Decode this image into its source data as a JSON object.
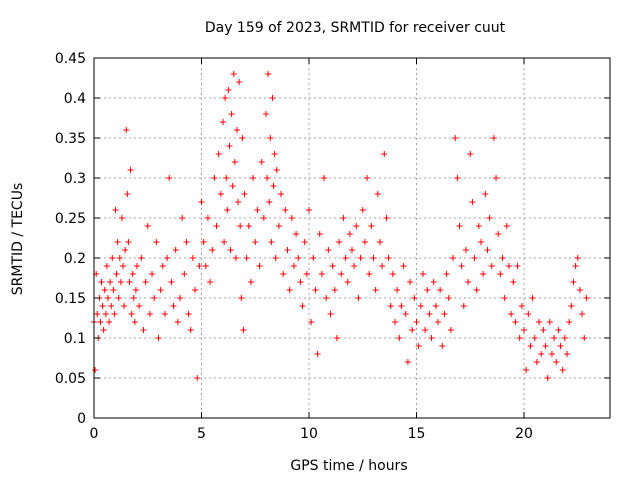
{
  "chart_data": {
    "type": "scatter",
    "title": "Day 159 of 2023, SRMTID for receiver cuut",
    "xlabel": "GPS time / hours",
    "ylabel": "SRMTID / TECUs",
    "xlim": [
      0,
      24
    ],
    "ylim": [
      0,
      0.45
    ],
    "xticks": [
      0,
      5,
      10,
      15,
      20
    ],
    "yticks": [
      0,
      0.05,
      0.1,
      0.15,
      0.2,
      0.25,
      0.3,
      0.35,
      0.4,
      0.45
    ],
    "ytick_labels": [
      "0",
      "0.05",
      "0.1",
      "0.15",
      "0.2",
      "0.25",
      "0.3",
      "0.35",
      "0.4",
      "0.45"
    ],
    "grid": true,
    "marker": "+",
    "color": "#ff0000",
    "series": [
      {
        "points": [
          [
            0.0,
            0.12
          ],
          [
            0.05,
            0.06
          ],
          [
            0.1,
            0.18
          ],
          [
            0.15,
            0.13
          ],
          [
            0.2,
            0.1
          ],
          [
            0.25,
            0.15
          ],
          [
            0.3,
            0.12
          ],
          [
            0.35,
            0.17
          ],
          [
            0.4,
            0.14
          ],
          [
            0.45,
            0.11
          ],
          [
            0.5,
            0.16
          ],
          [
            0.55,
            0.13
          ],
          [
            0.6,
            0.19
          ],
          [
            0.65,
            0.15
          ],
          [
            0.7,
            0.12
          ],
          [
            0.75,
            0.17
          ],
          [
            0.8,
            0.14
          ],
          [
            0.85,
            0.2
          ],
          [
            0.9,
            0.16
          ],
          [
            0.95,
            0.13
          ],
          [
            1.0,
            0.26
          ],
          [
            1.05,
            0.18
          ],
          [
            1.1,
            0.22
          ],
          [
            1.15,
            0.15
          ],
          [
            1.2,
            0.2
          ],
          [
            1.25,
            0.17
          ],
          [
            1.3,
            0.25
          ],
          [
            1.35,
            0.19
          ],
          [
            1.4,
            0.14
          ],
          [
            1.45,
            0.21
          ],
          [
            1.5,
            0.36
          ],
          [
            1.55,
            0.28
          ],
          [
            1.6,
            0.22
          ],
          [
            1.65,
            0.17
          ],
          [
            1.7,
            0.31
          ],
          [
            1.75,
            0.13
          ],
          [
            1.8,
            0.18
          ],
          [
            1.85,
            0.15
          ],
          [
            1.9,
            0.12
          ],
          [
            1.95,
            0.16
          ],
          [
            2.0,
            0.19
          ],
          [
            2.1,
            0.14
          ],
          [
            2.2,
            0.2
          ],
          [
            2.3,
            0.11
          ],
          [
            2.4,
            0.17
          ],
          [
            2.5,
            0.24
          ],
          [
            2.6,
            0.13
          ],
          [
            2.7,
            0.18
          ],
          [
            2.8,
            0.15
          ],
          [
            2.9,
            0.22
          ],
          [
            3.0,
            0.1
          ],
          [
            3.1,
            0.16
          ],
          [
            3.2,
            0.19
          ],
          [
            3.3,
            0.13
          ],
          [
            3.4,
            0.2
          ],
          [
            3.5,
            0.3
          ],
          [
            3.6,
            0.17
          ],
          [
            3.7,
            0.14
          ],
          [
            3.8,
            0.21
          ],
          [
            3.9,
            0.12
          ],
          [
            4.0,
            0.15
          ],
          [
            4.1,
            0.25
          ],
          [
            4.2,
            0.18
          ],
          [
            4.3,
            0.22
          ],
          [
            4.4,
            0.13
          ],
          [
            4.5,
            0.11
          ],
          [
            4.6,
            0.2
          ],
          [
            4.7,
            0.16
          ],
          [
            4.8,
            0.05
          ],
          [
            4.9,
            0.19
          ],
          [
            5.0,
            0.27
          ],
          [
            5.1,
            0.22
          ],
          [
            5.2,
            0.19
          ],
          [
            5.3,
            0.25
          ],
          [
            5.4,
            0.17
          ],
          [
            5.5,
            0.21
          ],
          [
            5.6,
            0.3
          ],
          [
            5.7,
            0.24
          ],
          [
            5.8,
            0.33
          ],
          [
            5.9,
            0.28
          ],
          [
            6.0,
            0.37
          ],
          [
            6.05,
            0.22
          ],
          [
            6.1,
            0.4
          ],
          [
            6.15,
            0.3
          ],
          [
            6.2,
            0.26
          ],
          [
            6.25,
            0.41
          ],
          [
            6.3,
            0.34
          ],
          [
            6.35,
            0.21
          ],
          [
            6.4,
            0.38
          ],
          [
            6.45,
            0.29
          ],
          [
            6.5,
            0.43
          ],
          [
            6.55,
            0.32
          ],
          [
            6.6,
            0.2
          ],
          [
            6.65,
            0.36
          ],
          [
            6.7,
            0.27
          ],
          [
            6.75,
            0.42
          ],
          [
            6.8,
            0.24
          ],
          [
            6.85,
            0.15
          ],
          [
            6.9,
            0.35
          ],
          [
            6.95,
            0.11
          ],
          [
            7.0,
            0.28
          ],
          [
            7.1,
            0.2
          ],
          [
            7.2,
            0.24
          ],
          [
            7.3,
            0.17
          ],
          [
            7.4,
            0.3
          ],
          [
            7.5,
            0.22
          ],
          [
            7.6,
            0.26
          ],
          [
            7.7,
            0.19
          ],
          [
            7.8,
            0.32
          ],
          [
            7.9,
            0.25
          ],
          [
            8.0,
            0.38
          ],
          [
            8.05,
            0.3
          ],
          [
            8.1,
            0.43
          ],
          [
            8.15,
            0.27
          ],
          [
            8.2,
            0.35
          ],
          [
            8.25,
            0.22
          ],
          [
            8.3,
            0.4
          ],
          [
            8.35,
            0.29
          ],
          [
            8.4,
            0.33
          ],
          [
            8.45,
            0.2
          ],
          [
            8.5,
            0.31
          ],
          [
            8.6,
            0.24
          ],
          [
            8.7,
            0.28
          ],
          [
            8.8,
            0.18
          ],
          [
            8.9,
            0.26
          ],
          [
            9.0,
            0.21
          ],
          [
            9.1,
            0.16
          ],
          [
            9.2,
            0.25
          ],
          [
            9.3,
            0.19
          ],
          [
            9.4,
            0.23
          ],
          [
            9.5,
            0.2
          ],
          [
            9.6,
            0.17
          ],
          [
            9.7,
            0.14
          ],
          [
            9.8,
            0.22
          ],
          [
            9.9,
            0.18
          ],
          [
            10.0,
            0.26
          ],
          [
            10.1,
            0.12
          ],
          [
            10.2,
            0.2
          ],
          [
            10.3,
            0.16
          ],
          [
            10.4,
            0.08
          ],
          [
            10.5,
            0.23
          ],
          [
            10.6,
            0.18
          ],
          [
            10.7,
            0.3
          ],
          [
            10.8,
            0.15
          ],
          [
            10.9,
            0.21
          ],
          [
            11.0,
            0.13
          ],
          [
            11.1,
            0.19
          ],
          [
            11.2,
            0.16
          ],
          [
            11.3,
            0.1
          ],
          [
            11.4,
            0.22
          ],
          [
            11.5,
            0.18
          ],
          [
            11.6,
            0.25
          ],
          [
            11.7,
            0.2
          ],
          [
            11.8,
            0.17
          ],
          [
            11.9,
            0.23
          ],
          [
            12.0,
            0.21
          ],
          [
            12.1,
            0.19
          ],
          [
            12.2,
            0.24
          ],
          [
            12.3,
            0.15
          ],
          [
            12.4,
            0.2
          ],
          [
            12.5,
            0.26
          ],
          [
            12.6,
            0.22
          ],
          [
            12.7,
            0.3
          ],
          [
            12.8,
            0.18
          ],
          [
            12.9,
            0.24
          ],
          [
            13.0,
            0.2
          ],
          [
            13.1,
            0.16
          ],
          [
            13.2,
            0.28
          ],
          [
            13.3,
            0.22
          ],
          [
            13.4,
            0.19
          ],
          [
            13.5,
            0.33
          ],
          [
            13.6,
            0.25
          ],
          [
            13.7,
            0.2
          ],
          [
            13.8,
            0.14
          ],
          [
            13.9,
            0.18
          ],
          [
            14.0,
            0.12
          ],
          [
            14.1,
            0.16
          ],
          [
            14.2,
            0.1
          ],
          [
            14.3,
            0.14
          ],
          [
            14.4,
            0.19
          ],
          [
            14.5,
            0.13
          ],
          [
            14.6,
            0.07
          ],
          [
            14.7,
            0.17
          ],
          [
            14.8,
            0.11
          ],
          [
            14.9,
            0.15
          ],
          [
            15.0,
            0.12
          ],
          [
            15.1,
            0.09
          ],
          [
            15.2,
            0.14
          ],
          [
            15.3,
            0.18
          ],
          [
            15.4,
            0.11
          ],
          [
            15.5,
            0.16
          ],
          [
            15.6,
            0.13
          ],
          [
            15.7,
            0.1
          ],
          [
            15.8,
            0.17
          ],
          [
            15.9,
            0.14
          ],
          [
            16.0,
            0.12
          ],
          [
            16.1,
            0.16
          ],
          [
            16.2,
            0.09
          ],
          [
            16.3,
            0.13
          ],
          [
            16.4,
            0.18
          ],
          [
            16.5,
            0.15
          ],
          [
            16.6,
            0.11
          ],
          [
            16.7,
            0.2
          ],
          [
            16.8,
            0.35
          ],
          [
            16.9,
            0.3
          ],
          [
            17.0,
            0.24
          ],
          [
            17.1,
            0.19
          ],
          [
            17.2,
            0.14
          ],
          [
            17.3,
            0.21
          ],
          [
            17.4,
            0.17
          ],
          [
            17.5,
            0.33
          ],
          [
            17.6,
            0.27
          ],
          [
            17.7,
            0.2
          ],
          [
            17.8,
            0.16
          ],
          [
            17.9,
            0.24
          ],
          [
            18.0,
            0.22
          ],
          [
            18.1,
            0.18
          ],
          [
            18.2,
            0.28
          ],
          [
            18.3,
            0.21
          ],
          [
            18.4,
            0.25
          ],
          [
            18.5,
            0.19
          ],
          [
            18.6,
            0.35
          ],
          [
            18.7,
            0.3
          ],
          [
            18.8,
            0.23
          ],
          [
            18.9,
            0.18
          ],
          [
            19.0,
            0.2
          ],
          [
            19.1,
            0.15
          ],
          [
            19.2,
            0.24
          ],
          [
            19.3,
            0.19
          ],
          [
            19.4,
            0.13
          ],
          [
            19.5,
            0.17
          ],
          [
            19.6,
            0.12
          ],
          [
            19.7,
            0.19
          ],
          [
            19.8,
            0.1
          ],
          [
            19.9,
            0.14
          ],
          [
            20.0,
            0.11
          ],
          [
            20.1,
            0.06
          ],
          [
            20.2,
            0.13
          ],
          [
            20.3,
            0.09
          ],
          [
            20.4,
            0.15
          ],
          [
            20.5,
            0.1
          ],
          [
            20.6,
            0.07
          ],
          [
            20.7,
            0.12
          ],
          [
            20.8,
            0.08
          ],
          [
            20.9,
            0.11
          ],
          [
            21.0,
            0.09
          ],
          [
            21.1,
            0.05
          ],
          [
            21.2,
            0.12
          ],
          [
            21.3,
            0.08
          ],
          [
            21.4,
            0.1
          ],
          [
            21.5,
            0.07
          ],
          [
            21.6,
            0.11
          ],
          [
            21.7,
            0.09
          ],
          [
            21.8,
            0.06
          ],
          [
            21.9,
            0.1
          ],
          [
            22.0,
            0.08
          ],
          [
            22.1,
            0.12
          ],
          [
            22.2,
            0.14
          ],
          [
            22.3,
            0.17
          ],
          [
            22.4,
            0.19
          ],
          [
            22.5,
            0.2
          ],
          [
            22.6,
            0.16
          ],
          [
            22.7,
            0.13
          ],
          [
            22.8,
            0.1
          ],
          [
            22.9,
            0.15
          ]
        ]
      }
    ]
  }
}
